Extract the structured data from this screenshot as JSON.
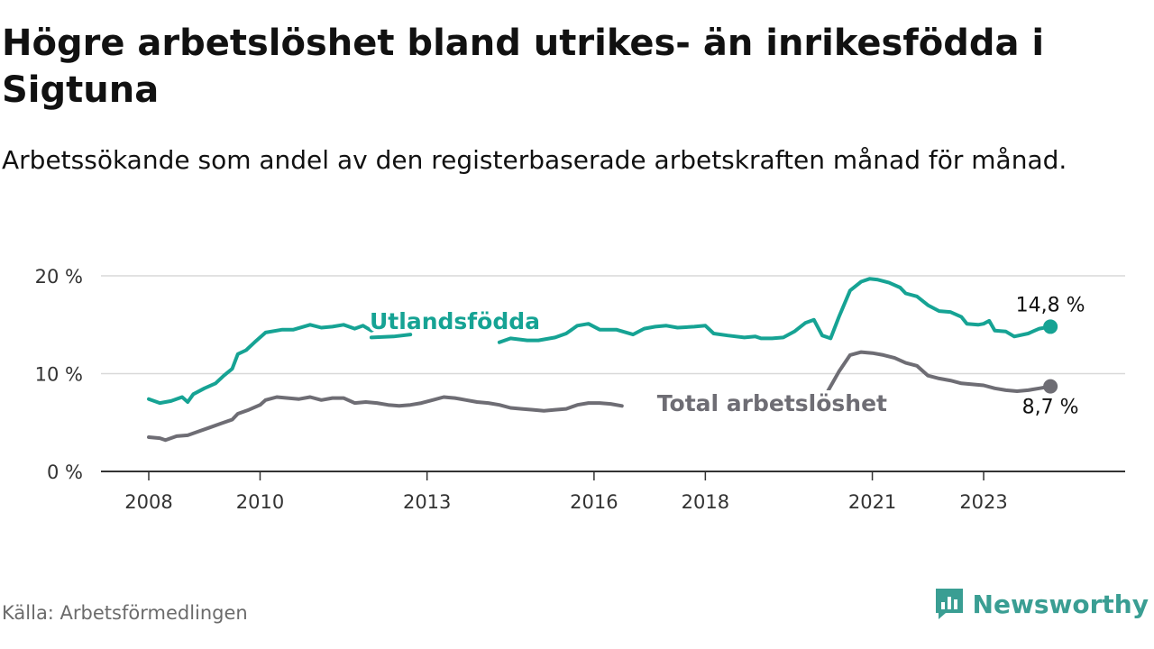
{
  "title": "Högre arbetslöshet bland utrikes- än inrikesfödda i Sigtuna",
  "subtitle": "Arbetssökande som andel av den registerbaserade arbetskraften månad för månad.",
  "source": "Källa: Arbetsförmedlingen",
  "brand": "Newsworthy",
  "chart_data": {
    "type": "line",
    "title": "Högre arbetslöshet bland utrikes- än inrikesfödda i Sigtuna",
    "ylim": [
      0,
      20
    ],
    "xlim": [
      2008,
      2024.7
    ],
    "yticks": [
      {
        "value": 0,
        "label": "0 %"
      },
      {
        "value": 10,
        "label": "10 %"
      },
      {
        "value": 20,
        "label": "20 %"
      }
    ],
    "xticks": [
      {
        "value": 2008,
        "label": "2008"
      },
      {
        "value": 2010,
        "label": "2010"
      },
      {
        "value": 2013,
        "label": "2013"
      },
      {
        "value": 2016,
        "label": "2016"
      },
      {
        "value": 2018,
        "label": "2018"
      },
      {
        "value": 2021,
        "label": "2021"
      },
      {
        "value": 2023,
        "label": "2023"
      }
    ],
    "series": [
      {
        "name": "Utlandsfödda",
        "color": "#16a394",
        "end_label": "14,8 %",
        "segments": [
          [
            [
              2008.0,
              7.4
            ],
            [
              2008.2,
              7.0
            ],
            [
              2008.4,
              7.2
            ],
            [
              2008.6,
              7.6
            ],
            [
              2008.7,
              7.1
            ],
            [
              2008.8,
              7.9
            ],
            [
              2009.0,
              8.5
            ],
            [
              2009.2,
              9.0
            ],
            [
              2009.35,
              9.8
            ],
            [
              2009.5,
              10.5
            ],
            [
              2009.6,
              12.0
            ],
            [
              2009.75,
              12.4
            ],
            [
              2009.9,
              13.2
            ],
            [
              2010.1,
              14.2
            ],
            [
              2010.4,
              14.5
            ],
            [
              2010.6,
              14.5
            ],
            [
              2010.9,
              15.0
            ],
            [
              2011.1,
              14.7
            ],
            [
              2011.3,
              14.8
            ],
            [
              2011.5,
              15.0
            ],
            [
              2011.7,
              14.6
            ],
            [
              2011.85,
              14.9
            ],
            [
              2012.0,
              14.4
            ],
            [
              2012.1,
              14.6
            ]
          ],
          [
            [
              2012.0,
              13.7
            ],
            [
              2012.4,
              13.8
            ],
            [
              2012.7,
              14.0
            ]
          ],
          [
            [
              2014.3,
              13.2
            ],
            [
              2014.5,
              13.6
            ],
            [
              2014.8,
              13.4
            ],
            [
              2015.0,
              13.4
            ],
            [
              2015.3,
              13.7
            ],
            [
              2015.5,
              14.1
            ],
            [
              2015.7,
              14.9
            ],
            [
              2015.9,
              15.1
            ],
            [
              2016.1,
              14.5
            ],
            [
              2016.4,
              14.5
            ],
            [
              2016.7,
              14.0
            ],
            [
              2016.9,
              14.6
            ],
            [
              2017.1,
              14.8
            ],
            [
              2017.3,
              14.9
            ],
            [
              2017.5,
              14.7
            ],
            [
              2017.8,
              14.8
            ],
            [
              2018.0,
              14.9
            ],
            [
              2018.15,
              14.1
            ],
            [
              2018.4,
              13.9
            ],
            [
              2018.7,
              13.7
            ],
            [
              2018.9,
              13.8
            ],
            [
              2019.0,
              13.6
            ],
            [
              2019.2,
              13.6
            ],
            [
              2019.4,
              13.7
            ],
            [
              2019.6,
              14.3
            ],
            [
              2019.8,
              15.2
            ],
            [
              2019.95,
              15.5
            ],
            [
              2020.1,
              13.9
            ],
            [
              2020.25,
              13.6
            ],
            [
              2020.4,
              15.8
            ],
            [
              2020.6,
              18.5
            ],
            [
              2020.8,
              19.4
            ],
            [
              2020.95,
              19.7
            ],
            [
              2021.1,
              19.6
            ],
            [
              2021.3,
              19.3
            ],
            [
              2021.5,
              18.8
            ],
            [
              2021.6,
              18.2
            ],
            [
              2021.8,
              17.9
            ],
            [
              2022.0,
              17.0
            ],
            [
              2022.2,
              16.4
            ],
            [
              2022.4,
              16.3
            ],
            [
              2022.6,
              15.8
            ],
            [
              2022.7,
              15.1
            ],
            [
              2022.9,
              15.0
            ],
            [
              2023.0,
              15.1
            ],
            [
              2023.1,
              15.4
            ],
            [
              2023.2,
              14.4
            ],
            [
              2023.4,
              14.3
            ],
            [
              2023.55,
              13.8
            ],
            [
              2023.8,
              14.1
            ],
            [
              2024.0,
              14.6
            ],
            [
              2024.2,
              14.8
            ]
          ]
        ]
      },
      {
        "name": "Total arbetslöshet",
        "color": "#6e6d74",
        "end_label": "8,7 %",
        "segments": [
          [
            [
              2008.0,
              3.5
            ],
            [
              2008.2,
              3.4
            ],
            [
              2008.3,
              3.2
            ],
            [
              2008.5,
              3.6
            ],
            [
              2008.7,
              3.7
            ],
            [
              2008.9,
              4.1
            ],
            [
              2009.1,
              4.5
            ],
            [
              2009.3,
              4.9
            ],
            [
              2009.5,
              5.3
            ],
            [
              2009.6,
              5.9
            ],
            [
              2009.8,
              6.3
            ],
            [
              2010.0,
              6.8
            ],
            [
              2010.1,
              7.3
            ],
            [
              2010.3,
              7.6
            ],
            [
              2010.5,
              7.5
            ],
            [
              2010.7,
              7.4
            ],
            [
              2010.9,
              7.6
            ],
            [
              2011.1,
              7.3
            ],
            [
              2011.3,
              7.5
            ],
            [
              2011.5,
              7.5
            ],
            [
              2011.7,
              7.0
            ],
            [
              2011.9,
              7.1
            ],
            [
              2012.1,
              7.0
            ],
            [
              2012.3,
              6.8
            ],
            [
              2012.5,
              6.7
            ],
            [
              2012.7,
              6.8
            ],
            [
              2012.9,
              7.0
            ],
            [
              2013.1,
              7.3
            ],
            [
              2013.3,
              7.6
            ],
            [
              2013.5,
              7.5
            ],
            [
              2013.7,
              7.3
            ],
            [
              2013.9,
              7.1
            ],
            [
              2014.1,
              7.0
            ],
            [
              2014.3,
              6.8
            ],
            [
              2014.5,
              6.5
            ],
            [
              2014.7,
              6.4
            ],
            [
              2014.9,
              6.3
            ],
            [
              2015.1,
              6.2
            ],
            [
              2015.3,
              6.3
            ],
            [
              2015.5,
              6.4
            ],
            [
              2015.7,
              6.8
            ],
            [
              2015.9,
              7.0
            ],
            [
              2016.1,
              7.0
            ],
            [
              2016.3,
              6.9
            ],
            [
              2016.5,
              6.7
            ]
          ],
          [
            [
              2020.2,
              8.2
            ],
            [
              2020.4,
              10.2
            ],
            [
              2020.6,
              11.9
            ],
            [
              2020.8,
              12.2
            ],
            [
              2021.0,
              12.1
            ],
            [
              2021.2,
              11.9
            ],
            [
              2021.4,
              11.6
            ],
            [
              2021.6,
              11.1
            ],
            [
              2021.8,
              10.8
            ],
            [
              2022.0,
              9.8
            ],
            [
              2022.2,
              9.5
            ],
            [
              2022.4,
              9.3
            ],
            [
              2022.6,
              9.0
            ],
            [
              2022.8,
              8.9
            ],
            [
              2023.0,
              8.8
            ],
            [
              2023.2,
              8.5
            ],
            [
              2023.4,
              8.3
            ],
            [
              2023.6,
              8.2
            ],
            [
              2023.8,
              8.3
            ],
            [
              2024.0,
              8.5
            ],
            [
              2024.2,
              8.7
            ]
          ]
        ]
      }
    ]
  }
}
